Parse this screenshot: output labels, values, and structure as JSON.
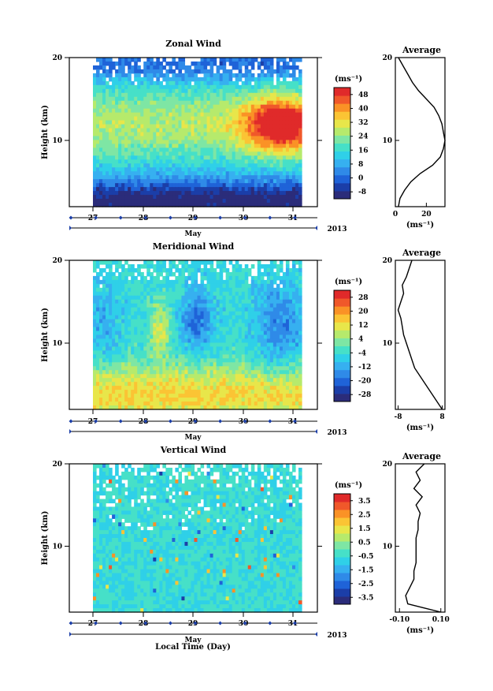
{
  "chart_data": [
    {
      "type": "heatmap",
      "id": "zonal",
      "title": "Zonal Wind",
      "ylabel": "Height (km)",
      "yticks": [
        "20",
        "10"
      ],
      "ylim": [
        2,
        20
      ],
      "xticks": [
        "27",
        "28",
        "29",
        "30",
        "31"
      ],
      "xlabel": "May",
      "year": "2013",
      "colorbar": {
        "unit": "(ms⁻¹)",
        "ticks": [
          "48",
          "40",
          "32",
          "24",
          "16",
          "8",
          "0",
          "-8"
        ],
        "range": [
          -12,
          52
        ]
      },
      "average": {
        "title": "Average",
        "xticks": [
          "0",
          "20"
        ],
        "xlim": [
          0,
          32
        ],
        "xlabel": "(ms⁻¹)",
        "yticks": [
          "20",
          "10"
        ],
        "profile": [
          [
            2,
            2
          ],
          [
            3,
            3
          ],
          [
            4,
            6
          ],
          [
            5,
            10
          ],
          [
            6,
            16
          ],
          [
            7,
            24
          ],
          [
            8,
            29
          ],
          [
            9,
            31
          ],
          [
            10,
            32
          ],
          [
            11,
            31
          ],
          [
            12,
            30
          ],
          [
            13,
            28
          ],
          [
            14,
            25
          ],
          [
            15,
            20
          ],
          [
            16,
            15
          ],
          [
            17,
            11
          ],
          [
            18,
            8
          ],
          [
            19,
            5
          ],
          [
            20,
            2
          ]
        ]
      }
    },
    {
      "type": "heatmap",
      "id": "meridional",
      "title": "Meridional Wind",
      "ylabel": "Height (km)",
      "yticks": [
        "20",
        "10"
      ],
      "ylim": [
        2,
        20
      ],
      "xticks": [
        "27",
        "28",
        "29",
        "30",
        "31"
      ],
      "xlabel": "May",
      "year": "2013",
      "colorbar": {
        "unit": "(ms⁻¹)",
        "ticks": [
          "28",
          "20",
          "12",
          "4",
          "-4",
          "-12",
          "-20",
          "-28"
        ],
        "range": [
          -32,
          32
        ]
      },
      "average": {
        "title": "Average",
        "xticks": [
          "-8",
          "8"
        ],
        "xlim": [
          -9,
          9
        ],
        "xlabel": "(ms⁻¹)",
        "yticks": [
          "20",
          "10"
        ],
        "profile": [
          [
            2,
            8
          ],
          [
            3,
            6
          ],
          [
            4,
            4
          ],
          [
            5,
            2
          ],
          [
            6,
            0
          ],
          [
            7,
            -2
          ],
          [
            8,
            -3
          ],
          [
            9,
            -4
          ],
          [
            10,
            -5
          ],
          [
            11,
            -6
          ],
          [
            12,
            -6.5
          ],
          [
            13,
            -7
          ],
          [
            14,
            -8
          ],
          [
            15,
            -7
          ],
          [
            16,
            -6
          ],
          [
            17,
            -6.5
          ],
          [
            18,
            -5
          ],
          [
            19,
            -4
          ],
          [
            20,
            -3
          ]
        ]
      }
    },
    {
      "type": "heatmap",
      "id": "vertical",
      "title": "Vertical Wind",
      "ylabel": "Height (km)",
      "yticks": [
        "20",
        "10"
      ],
      "ylim": [
        2,
        20
      ],
      "xticks": [
        "27",
        "28",
        "29",
        "30",
        "31"
      ],
      "xlabel": "May",
      "year": "2013",
      "colorbar": {
        "unit": "(ms⁻¹)",
        "ticks": [
          "3.5",
          "2.5",
          "1.5",
          "0.5",
          "-0.5",
          "-1.5",
          "-2.5",
          "-3.5"
        ],
        "range": [
          -4,
          4
        ]
      },
      "average": {
        "title": "Average",
        "xticks": [
          "-0.10",
          "0.10"
        ],
        "xlim": [
          -0.12,
          0.12
        ],
        "xlabel": "(ms⁻¹)",
        "yticks": [
          "20",
          "10"
        ],
        "profile": [
          [
            2,
            0.1
          ],
          [
            2.5,
            0.02
          ],
          [
            3,
            -0.06
          ],
          [
            4,
            -0.07
          ],
          [
            5,
            -0.05
          ],
          [
            6,
            -0.03
          ],
          [
            7,
            -0.03
          ],
          [
            8,
            -0.02
          ],
          [
            9,
            -0.02
          ],
          [
            10,
            -0.02
          ],
          [
            11,
            -0.02
          ],
          [
            12,
            -0.01
          ],
          [
            13,
            -0.01
          ],
          [
            14,
            0.0
          ],
          [
            15,
            -0.02
          ],
          [
            16,
            0.01
          ],
          [
            17,
            -0.03
          ],
          [
            18,
            0.0
          ],
          [
            19,
            -0.02
          ],
          [
            20,
            0.02
          ]
        ]
      }
    }
  ],
  "footer": {
    "xlabel": "Local Time (Day)"
  },
  "colors": [
    "#2b2c7a",
    "#1b3ea8",
    "#1f63d8",
    "#2f8ae8",
    "#36b0f0",
    "#2fd0e8",
    "#46e0c8",
    "#7ee6a4",
    "#b6ea6c",
    "#e8e64a",
    "#fbc434",
    "#fa9226",
    "#f0582a",
    "#e02a2a"
  ]
}
